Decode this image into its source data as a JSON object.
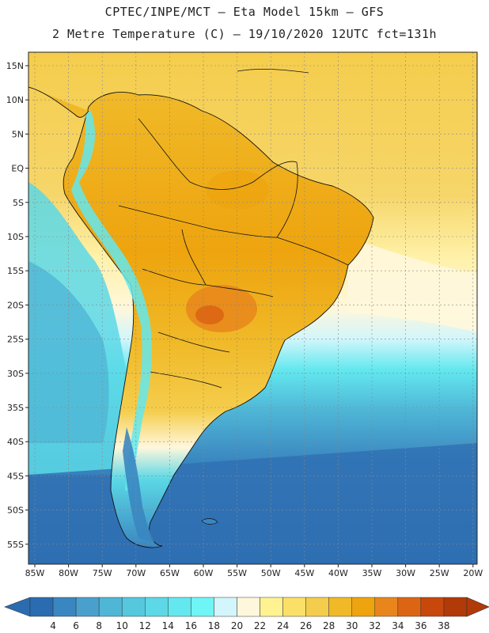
{
  "header": {
    "line1": "CPTEC/INPE/MCT –  Eta Model 15km – GFS",
    "line2": "2 Metre Temperature (C) – 19/10/2020 12UTC fct=131h"
  },
  "axes": {
    "lat_labels": [
      "15N",
      "10N",
      "5N",
      "EQ",
      "5S",
      "10S",
      "15S",
      "20S",
      "25S",
      "30S",
      "35S",
      "40S",
      "45S",
      "50S",
      "55S"
    ],
    "lon_labels": [
      "85W",
      "80W",
      "75W",
      "70W",
      "65W",
      "60W",
      "55W",
      "50W",
      "45W",
      "40W",
      "35W",
      "30W",
      "25W",
      "20W"
    ]
  },
  "colorbar": {
    "values": [
      "4",
      "6",
      "8",
      "10",
      "12",
      "14",
      "16",
      "18",
      "20",
      "22",
      "24",
      "26",
      "28",
      "30",
      "32",
      "34",
      "36",
      "38"
    ],
    "colors": [
      "#2b6cb0",
      "#3a86c0",
      "#4aa0cc",
      "#4fb6d6",
      "#55c8de",
      "#5cd8e6",
      "#63e8ef",
      "#70f5f6",
      "#d2f6fb",
      "#fff7dc",
      "#fff291",
      "#fbe068",
      "#f5cd4c",
      "#f0b928",
      "#eea40e",
      "#e8861c",
      "#dc6514",
      "#c8480c",
      "#b23a08"
    ]
  },
  "colors": {
    "ocean_north": "#f5cd4c",
    "ocean_south": "#2f6fb3",
    "land_hot": "#eea40e",
    "land_mid": "#f0b928",
    "andes": "#63e8ef",
    "coast_line": "#111111",
    "grid": "#888888"
  },
  "map_data": {
    "lat_range": [
      -58,
      17
    ],
    "lon_range": [
      -86,
      -20
    ]
  }
}
